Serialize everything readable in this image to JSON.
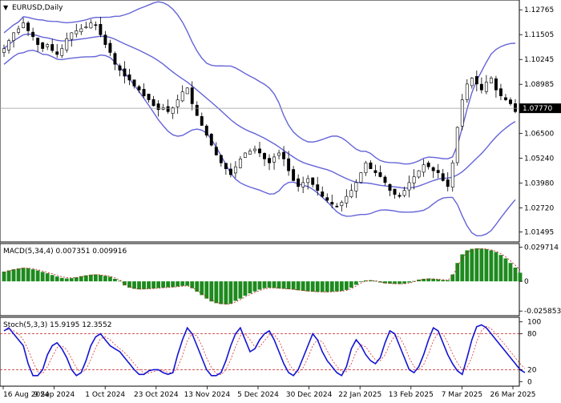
{
  "window_title": "EURUSD,Daily",
  "title_menu_arrow": "▼",
  "colors": {
    "candle": "#000000",
    "bollinger": "#6464d8",
    "macd_hist": "#1d8a1d",
    "macd_signal": "#c02020",
    "stoch_main": "#1414d2",
    "stoch_signal": "#e03030",
    "levels": "#c02020",
    "current_price_line": "#9a9a9a",
    "current_price_box": "#000000",
    "grid_frame": "#000000"
  },
  "chart_data": [
    {
      "type": "candlestick",
      "title": "EURUSD,Daily",
      "y_ticks": [
        "1.12765",
        "1.11505",
        "1.10245",
        "1.08985",
        "1.06500",
        "1.05240",
        "1.03980",
        "1.02720",
        "1.01495"
      ],
      "y_range": [
        1.0115,
        1.131
      ],
      "current_price": "1.07770",
      "indicator": "Bollinger Bands",
      "close_path": [
        1.108,
        1.112,
        1.116,
        1.118,
        1.121,
        1.117,
        1.114,
        1.11,
        1.108,
        1.11,
        1.107,
        1.105,
        1.108,
        1.113,
        1.116,
        1.117,
        1.118,
        1.119,
        1.121,
        1.12,
        1.115,
        1.11,
        1.106,
        1.1,
        1.097,
        1.094,
        1.092,
        1.089,
        1.087,
        1.084,
        1.082,
        1.079,
        1.077,
        1.078,
        1.076,
        1.078,
        1.082,
        1.086,
        1.088,
        1.08,
        1.074,
        1.069,
        1.064,
        1.059,
        1.054,
        1.05,
        1.047,
        1.044,
        1.048,
        1.052,
        1.055,
        1.056,
        1.057,
        1.055,
        1.052,
        1.05,
        1.053,
        1.055,
        1.052,
        1.046,
        1.041,
        1.038,
        1.04,
        1.042,
        1.039,
        1.036,
        1.033,
        1.031,
        1.029,
        1.028,
        1.03,
        1.033,
        1.036,
        1.04,
        1.045,
        1.05,
        1.047,
        1.045,
        1.043,
        1.04,
        1.036,
        1.034,
        1.033,
        1.036,
        1.04,
        1.043,
        1.046,
        1.049,
        1.048,
        1.046,
        1.045,
        1.041,
        1.038,
        1.05,
        1.068,
        1.082,
        1.09,
        1.093,
        1.09,
        1.087,
        1.091,
        1.093,
        1.087,
        1.084,
        1.082,
        1.08,
        1.076
      ]
    },
    {
      "type": "bar",
      "title": "MACD(5,34,4) 0.007351 0.009916",
      "y_ticks": [
        "0.029714",
        "0",
        "-0.025853"
      ],
      "y_range": [
        -0.0285,
        0.0315
      ],
      "values": [
        0.0085,
        0.0095,
        0.0105,
        0.0112,
        0.0118,
        0.0115,
        0.0105,
        0.0095,
        0.0082,
        0.007,
        0.0055,
        0.0042,
        0.003,
        0.0025,
        0.0028,
        0.0035,
        0.0045,
        0.0052,
        0.0058,
        0.006,
        0.0055,
        0.0048,
        0.004,
        0.0022,
        0.0005,
        -0.0035,
        -0.0055,
        -0.0065,
        -0.007,
        -0.0068,
        -0.0065,
        -0.0062,
        -0.0058,
        -0.0055,
        -0.0052,
        -0.005,
        -0.0045,
        -0.004,
        -0.0038,
        -0.006,
        -0.009,
        -0.012,
        -0.015,
        -0.0175,
        -0.019,
        -0.0198,
        -0.02,
        -0.0195,
        -0.017,
        -0.015,
        -0.0125,
        -0.0105,
        -0.0088,
        -0.0072,
        -0.006,
        -0.0055,
        -0.0058,
        -0.0062,
        -0.0065,
        -0.0068,
        -0.0072,
        -0.0078,
        -0.0083,
        -0.0087,
        -0.009,
        -0.0092,
        -0.0093,
        -0.0093,
        -0.009,
        -0.0088,
        -0.0084,
        -0.0075,
        -0.0055,
        -0.003,
        -0.0005,
        0.0008,
        0.001,
        0.0004,
        -0.001,
        -0.0018,
        -0.002,
        -0.0022,
        -0.0023,
        -0.002,
        -0.001,
        0.0003,
        0.0015,
        0.0022,
        0.0025,
        0.0022,
        0.0018,
        0.0012,
        0.001,
        0.006,
        0.016,
        0.0235,
        0.027,
        0.0283,
        0.0287,
        0.0285,
        0.028,
        0.027,
        0.0255,
        0.023,
        0.02,
        0.016,
        0.012,
        0.0075
      ],
      "signal": [
        0.008,
        0.009,
        0.01,
        0.0108,
        0.0114,
        0.0115,
        0.011,
        0.0102,
        0.009,
        0.0078,
        0.0065,
        0.0052,
        0.004,
        0.0032,
        0.003,
        0.0033,
        0.004,
        0.0048,
        0.0054,
        0.0058,
        0.0056,
        0.0051,
        0.0044,
        0.003,
        0.0012,
        -0.0025,
        -0.0048,
        -0.006,
        -0.0067,
        -0.0068,
        -0.0066,
        -0.0063,
        -0.006,
        -0.0057,
        -0.0054,
        -0.0051,
        -0.0047,
        -0.0042,
        -0.0039,
        -0.0052,
        -0.0078,
        -0.0106,
        -0.0136,
        -0.0163,
        -0.0182,
        -0.0194,
        -0.0199,
        -0.0197,
        -0.018,
        -0.016,
        -0.0136,
        -0.0115,
        -0.0096,
        -0.008,
        -0.0066,
        -0.0058,
        -0.0057,
        -0.006,
        -0.0063,
        -0.0066,
        -0.007,
        -0.0075,
        -0.008,
        -0.0085,
        -0.0088,
        -0.0091,
        -0.0092,
        -0.0093,
        -0.0091,
        -0.0089,
        -0.0086,
        -0.0079,
        -0.0063,
        -0.004,
        -0.0015,
        0.0002,
        0.0007,
        0.0005,
        -0.0005,
        -0.0014,
        -0.0018,
        -0.0021,
        -0.0022,
        -0.0021,
        -0.0014,
        -0.0003,
        0.001,
        0.0018,
        0.0023,
        0.0022,
        0.0019,
        0.0014,
        0.0011,
        0.0045,
        0.0125,
        0.0205,
        0.025,
        0.0272,
        0.0282,
        0.0284,
        0.0282,
        0.0274,
        0.0262,
        0.0242,
        0.0214,
        0.0178,
        0.014,
        0.0099
      ]
    },
    {
      "type": "line",
      "title": "Stoch(5,3,3) 15.9195 12.3552",
      "y_ticks": [
        "100",
        "80",
        "20",
        "0"
      ],
      "y_range": [
        0,
        100
      ],
      "levels": [
        80,
        20
      ],
      "main": [
        85,
        90,
        80,
        70,
        60,
        30,
        10,
        10,
        20,
        45,
        60,
        65,
        55,
        40,
        20,
        10,
        15,
        35,
        60,
        75,
        80,
        70,
        60,
        55,
        50,
        40,
        30,
        20,
        12,
        12,
        18,
        20,
        20,
        15,
        12,
        15,
        45,
        70,
        90,
        80,
        60,
        40,
        20,
        10,
        10,
        15,
        35,
        60,
        80,
        90,
        70,
        50,
        55,
        70,
        80,
        85,
        70,
        50,
        30,
        15,
        10,
        20,
        40,
        60,
        80,
        70,
        50,
        35,
        25,
        15,
        10,
        25,
        55,
        70,
        60,
        45,
        35,
        30,
        40,
        65,
        85,
        80,
        60,
        40,
        20,
        15,
        25,
        45,
        70,
        90,
        85,
        65,
        45,
        30,
        18,
        12,
        40,
        70,
        92,
        95,
        90,
        80,
        70,
        60,
        50,
        40,
        30,
        20,
        15
      ]
    }
  ],
  "x_axis_labels": [
    "16 Aug 2024",
    "9 Sep 2024",
    "1 Oct 2024",
    "23 Oct 2024",
    "13 Nov 2024",
    "5 Dec 2024",
    "30 Dec 2024",
    "22 Jan 2025",
    "13 Feb 2025",
    "7 Mar 2025",
    "26 Mar 2025"
  ]
}
